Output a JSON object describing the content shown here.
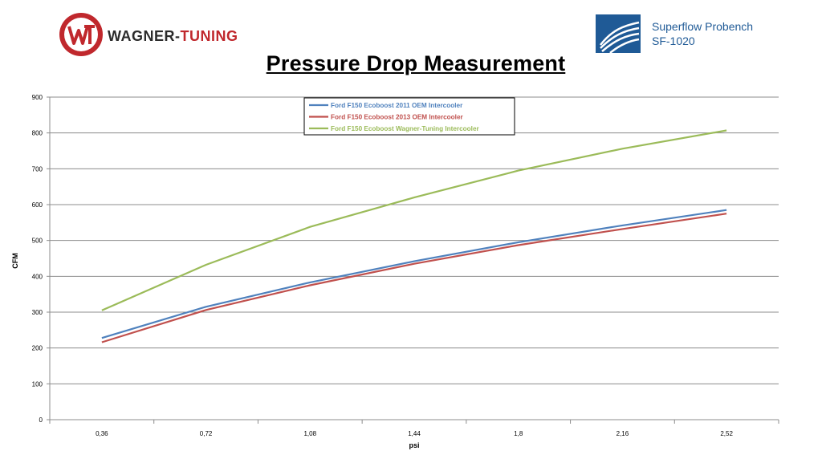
{
  "logos": {
    "brand_name_part1": "WAGNER-",
    "brand_name_part2": "TUNING",
    "brand_color_dark": "#2b2b2b",
    "brand_color_red": "#c0282d",
    "bench_line1": "Superflow Probench",
    "bench_line2": "SF-1020",
    "bench_color": "#1f5a96"
  },
  "chart_data": {
    "type": "line",
    "title": "Pressure Drop Measurement",
    "xlabel": "psi",
    "ylabel": "CFM",
    "categories": [
      "0,36",
      "0,72",
      "1,08",
      "1,44",
      "1,8",
      "2,16",
      "2,52"
    ],
    "yticks": [
      "0",
      "100",
      "200",
      "300",
      "400",
      "500",
      "600",
      "700",
      "800",
      "900"
    ],
    "ylim": [
      0,
      900
    ],
    "grid": true,
    "legend_position": "top-center",
    "series": [
      {
        "name": "Ford F150 Ecoboost 2011 OEM Intercooler",
        "color": "#4f81bd",
        "values": [
          228,
          315,
          383,
          442,
          495,
          542,
          585
        ]
      },
      {
        "name": "Ford F150 Ecoboost 2013 OEM Intercooler",
        "color": "#c0504d",
        "values": [
          216,
          306,
          375,
          435,
          487,
          532,
          575
        ]
      },
      {
        "name": "Ford F150 Ecoboost Wagner-Tuning Intercooler",
        "color": "#9bbb59",
        "values": [
          305,
          432,
          538,
          620,
          695,
          756,
          807
        ]
      }
    ]
  }
}
